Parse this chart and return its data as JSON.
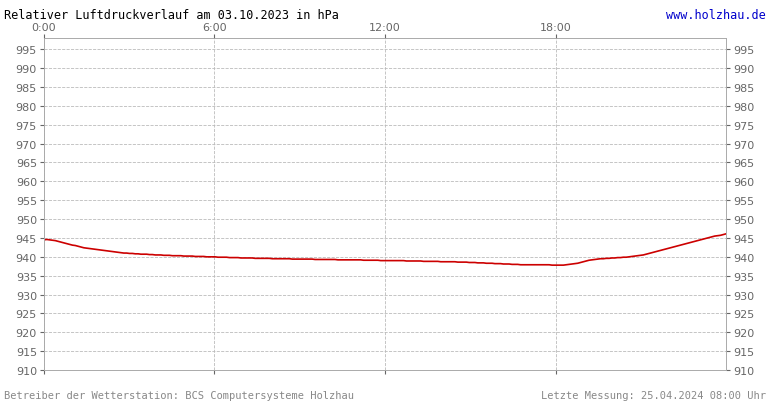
{
  "title_left": "Relativer Luftdruckverlauf am 03.10.2023 in hPa",
  "title_right": "www.holzhau.de",
  "footer_left": "Betreiber der Wetterstation: BCS Computersysteme Holzhau",
  "footer_right": "Letzte Messung: 25.04.2024 08:00 Uhr",
  "background_color": "#ffffff",
  "plot_bg_color": "#ffffff",
  "grid_color": "#bbbbbb",
  "line_color": "#cc0000",
  "title_color_left": "#000000",
  "title_color_right": "#0000cc",
  "footer_color": "#888888",
  "ylim": [
    910,
    998
  ],
  "yticks": [
    910,
    915,
    920,
    925,
    930,
    935,
    940,
    945,
    950,
    955,
    960,
    965,
    970,
    975,
    980,
    985,
    990,
    995
  ],
  "xtick_labels": [
    "0:00",
    "6:00",
    "12:00",
    "18:00"
  ],
  "xtick_positions": [
    0,
    360,
    720,
    1080
  ],
  "xmax": 1440,
  "pressure_data": [
    944.5,
    944.6,
    944.5,
    944.4,
    944.3,
    944.1,
    943.9,
    943.7,
    943.5,
    943.3,
    943.1,
    943.0,
    942.8,
    942.6,
    942.4,
    942.3,
    942.2,
    942.1,
    942.0,
    941.9,
    941.8,
    941.7,
    941.6,
    941.5,
    941.4,
    941.3,
    941.2,
    941.1,
    941.0,
    941.0,
    940.9,
    940.9,
    940.8,
    940.8,
    940.7,
    940.7,
    940.7,
    940.6,
    940.6,
    940.5,
    940.5,
    940.5,
    940.4,
    940.4,
    940.4,
    940.3,
    940.3,
    940.3,
    940.3,
    940.2,
    940.2,
    940.2,
    940.2,
    940.1,
    940.1,
    940.1,
    940.1,
    940.0,
    940.0,
    940.0,
    940.0,
    939.9,
    939.9,
    939.9,
    939.9,
    939.8,
    939.8,
    939.8,
    939.8,
    939.7,
    939.7,
    939.7,
    939.7,
    939.7,
    939.6,
    939.6,
    939.6,
    939.6,
    939.6,
    939.6,
    939.5,
    939.5,
    939.5,
    939.5,
    939.5,
    939.5,
    939.5,
    939.4,
    939.4,
    939.4,
    939.4,
    939.4,
    939.4,
    939.4,
    939.4,
    939.3,
    939.3,
    939.3,
    939.3,
    939.3,
    939.3,
    939.3,
    939.3,
    939.2,
    939.2,
    939.2,
    939.2,
    939.2,
    939.2,
    939.2,
    939.2,
    939.2,
    939.1,
    939.1,
    939.1,
    939.1,
    939.1,
    939.1,
    939.0,
    939.0,
    939.0,
    939.0,
    939.0,
    939.0,
    939.0,
    939.0,
    939.0,
    938.9,
    938.9,
    938.9,
    938.9,
    938.9,
    938.9,
    938.8,
    938.8,
    938.8,
    938.8,
    938.8,
    938.8,
    938.7,
    938.7,
    938.7,
    938.7,
    938.7,
    938.7,
    938.6,
    938.6,
    938.6,
    938.6,
    938.5,
    938.5,
    938.5,
    938.4,
    938.4,
    938.4,
    938.3,
    938.3,
    938.3,
    938.2,
    938.2,
    938.2,
    938.1,
    938.1,
    938.1,
    938.0,
    938.0,
    938.0,
    937.9,
    937.9,
    937.9,
    937.9,
    937.9,
    937.9,
    937.9,
    937.9,
    937.9,
    937.9,
    937.9,
    937.8,
    937.8,
    937.8,
    937.8,
    937.8,
    937.9,
    938.0,
    938.1,
    938.2,
    938.3,
    938.5,
    938.7,
    938.9,
    939.1,
    939.2,
    939.3,
    939.4,
    939.5,
    939.5,
    939.6,
    939.6,
    939.7,
    939.7,
    939.8,
    939.8,
    939.9,
    939.9,
    940.0,
    940.1,
    940.2,
    940.3,
    940.4,
    940.5,
    940.7,
    940.9,
    941.1,
    941.3,
    941.5,
    941.7,
    941.9,
    942.1,
    942.3,
    942.5,
    942.7,
    942.9,
    943.1,
    943.3,
    943.5,
    943.7,
    943.9,
    944.1,
    944.3,
    944.5,
    944.7,
    944.9,
    945.1,
    945.3,
    945.5,
    945.6,
    945.7,
    945.9,
    946.1
  ]
}
